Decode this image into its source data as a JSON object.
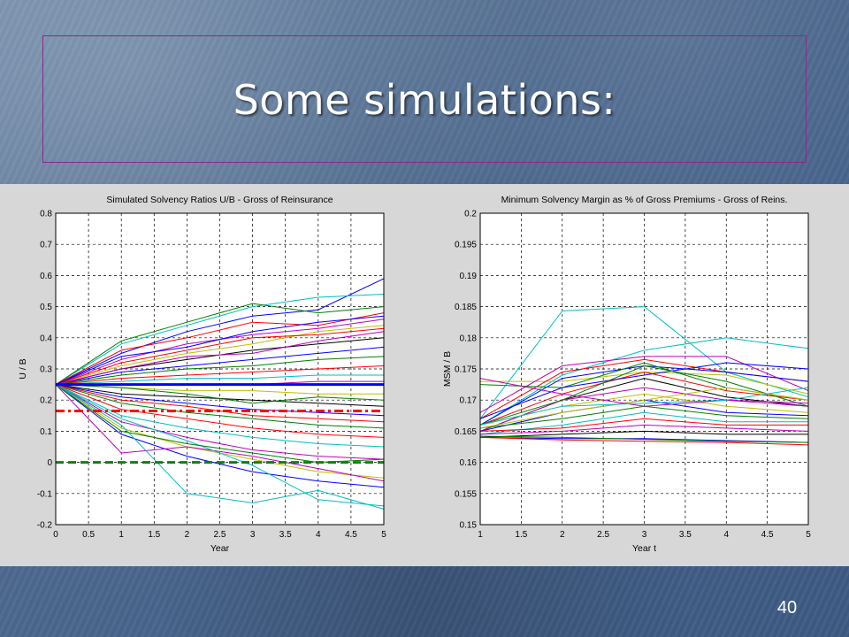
{
  "slide": {
    "title": "Some simulations:",
    "number": "40"
  },
  "colors": {
    "title_border": "#8a2a8a",
    "figure_background": "#d7d7d7",
    "threshold_red": "#ff0000",
    "threshold_green": "#008800",
    "reference_blue": "#0000ff"
  },
  "chart_data": [
    {
      "type": "line",
      "title": "Simulated Solvency Ratios U/B  -  Gross of Reinsurance",
      "xlabel": "Year",
      "ylabel": "U / B",
      "xlim": [
        0,
        5
      ],
      "ylim": [
        -0.2,
        0.8
      ],
      "xticks": [
        "0",
        "0.5",
        "1",
        "1.5",
        "2",
        "2.5",
        "3",
        "3.5",
        "4",
        "4.5",
        "5"
      ],
      "yticks": [
        "-0.2",
        "-0.1",
        "0",
        "0.1",
        "0.2",
        "0.3",
        "0.4",
        "0.5",
        "0.6",
        "0.7",
        "0.8"
      ],
      "grid": true,
      "x": [
        0,
        1,
        2,
        3,
        4,
        5
      ],
      "reference_lines": [
        {
          "y": 0.25,
          "color": "#0000ff",
          "style": "solid"
        },
        {
          "y": 0.165,
          "color": "#ff0000",
          "style": "dash-dot"
        },
        {
          "y": 0.0,
          "color": "#008800",
          "style": "dashed"
        }
      ],
      "series": [
        {
          "color": "#0000ff",
          "values": [
            0.25,
            0.35,
            0.42,
            0.47,
            0.49,
            0.59
          ]
        },
        {
          "color": "#00bfbf",
          "values": [
            0.25,
            0.38,
            0.44,
            0.5,
            0.53,
            0.54
          ]
        },
        {
          "color": "#008000",
          "values": [
            0.25,
            0.39,
            0.45,
            0.51,
            0.48,
            0.5
          ]
        },
        {
          "color": "#ff0000",
          "values": [
            0.25,
            0.36,
            0.4,
            0.45,
            0.44,
            0.48
          ]
        },
        {
          "color": "#bf00bf",
          "values": [
            0.25,
            0.33,
            0.38,
            0.41,
            0.43,
            0.46
          ]
        },
        {
          "color": "#bfbf00",
          "values": [
            0.25,
            0.31,
            0.35,
            0.38,
            0.42,
            0.44
          ]
        },
        {
          "color": "#000000",
          "values": [
            0.25,
            0.3,
            0.33,
            0.36,
            0.38,
            0.4
          ]
        },
        {
          "color": "#0000ff",
          "values": [
            0.25,
            0.29,
            0.31,
            0.33,
            0.35,
            0.37
          ]
        },
        {
          "color": "#008000",
          "values": [
            0.25,
            0.28,
            0.3,
            0.31,
            0.33,
            0.34
          ]
        },
        {
          "color": "#ff0000",
          "values": [
            0.25,
            0.27,
            0.28,
            0.29,
            0.3,
            0.31
          ]
        },
        {
          "color": "#00bfbf",
          "values": [
            0.25,
            0.26,
            0.27,
            0.27,
            0.28,
            0.28
          ]
        },
        {
          "color": "#bf00bf",
          "values": [
            0.25,
            0.25,
            0.25,
            0.25,
            0.26,
            0.26
          ]
        },
        {
          "color": "#bfbf00",
          "values": [
            0.25,
            0.24,
            0.23,
            0.23,
            0.22,
            0.22
          ]
        },
        {
          "color": "#000000",
          "values": [
            0.25,
            0.22,
            0.21,
            0.2,
            0.19,
            0.18
          ]
        },
        {
          "color": "#0000ff",
          "values": [
            0.25,
            0.21,
            0.19,
            0.17,
            0.16,
            0.15
          ]
        },
        {
          "color": "#008000",
          "values": [
            0.25,
            0.19,
            0.16,
            0.14,
            0.12,
            0.11
          ]
        },
        {
          "color": "#ff0000",
          "values": [
            0.25,
            0.17,
            0.14,
            0.11,
            0.09,
            0.08
          ]
        },
        {
          "color": "#00bfbf",
          "values": [
            0.25,
            0.15,
            0.11,
            0.08,
            0.06,
            0.05
          ]
        },
        {
          "color": "#bf00bf",
          "values": [
            0.25,
            0.13,
            0.08,
            0.04,
            0.02,
            0.01
          ]
        },
        {
          "color": "#bfbf00",
          "values": [
            0.25,
            0.11,
            0.05,
            0.01,
            -0.03,
            -0.05
          ]
        },
        {
          "color": "#0000ff",
          "values": [
            0.25,
            0.09,
            0.02,
            -0.03,
            -0.06,
            -0.08
          ]
        },
        {
          "color": "#bf00bf",
          "values": [
            0.25,
            0.03,
            0.05,
            0.02,
            -0.02,
            -0.06
          ]
        },
        {
          "color": "#00bfbf",
          "values": [
            0.25,
            0.12,
            -0.1,
            -0.13,
            -0.09,
            -0.15
          ]
        },
        {
          "color": "#00bfbf",
          "values": [
            0.25,
            0.14,
            0.07,
            -0.01,
            -0.12,
            -0.14
          ]
        },
        {
          "color": "#008000",
          "values": [
            0.25,
            0.1,
            0.06,
            0.03,
            0.0,
            0.01
          ]
        },
        {
          "color": "#ff0000",
          "values": [
            0.25,
            0.32,
            0.36,
            0.4,
            0.41,
            0.43
          ]
        },
        {
          "color": "#0000ff",
          "values": [
            0.25,
            0.34,
            0.37,
            0.42,
            0.45,
            0.47
          ]
        },
        {
          "color": "#008000",
          "values": [
            0.25,
            0.24,
            0.22,
            0.19,
            0.21,
            0.2
          ]
        },
        {
          "color": "#ff0000",
          "values": [
            0.25,
            0.2,
            0.18,
            0.15,
            0.14,
            0.13
          ]
        },
        {
          "color": "#bf00bf",
          "values": [
            0.25,
            0.3,
            0.34,
            0.35,
            0.39,
            0.42
          ]
        }
      ]
    },
    {
      "type": "line",
      "title": "Minimum Solvency Margin as % of Gross Premiums  -  Gross of Reins.",
      "xlabel": "Year t",
      "ylabel": "MSM / B",
      "xlim": [
        1,
        5
      ],
      "ylim": [
        0.15,
        0.2
      ],
      "xticks": [
        "1",
        "1.5",
        "2",
        "2.5",
        "3",
        "3.5",
        "4",
        "4.5",
        "5"
      ],
      "yticks": [
        "0.15",
        "0.155",
        "0.16",
        "0.165",
        "0.17",
        "0.175",
        "0.18",
        "0.185",
        "0.19",
        "0.195",
        "0.2"
      ],
      "grid": true,
      "x": [
        1,
        2,
        3,
        4,
        5
      ],
      "series": [
        {
          "color": "#00bfbf",
          "values": [
            0.167,
            0.1843,
            0.185,
            0.1745,
            0.1705
          ]
        },
        {
          "color": "#00bfbf",
          "values": [
            0.166,
            0.174,
            0.178,
            0.18,
            0.1783
          ]
        },
        {
          "color": "#bfbf00",
          "values": [
            0.173,
            0.173,
            0.1745,
            0.174,
            0.171
          ]
        },
        {
          "color": "#bf00bf",
          "values": [
            0.168,
            0.1755,
            0.177,
            0.177,
            0.1715
          ]
        },
        {
          "color": "#ff0000",
          "values": [
            0.167,
            0.1745,
            0.1765,
            0.1745,
            0.173
          ]
        },
        {
          "color": "#0000ff",
          "values": [
            0.166,
            0.1735,
            0.1755,
            0.1745,
            0.173
          ]
        },
        {
          "color": "#008000",
          "values": [
            0.1725,
            0.172,
            0.176,
            0.172,
            0.17
          ]
        },
        {
          "color": "#000000",
          "values": [
            0.165,
            0.17,
            0.1735,
            0.1705,
            0.169
          ]
        },
        {
          "color": "#ff0000",
          "values": [
            0.166,
            0.171,
            0.1745,
            0.1715,
            0.17
          ]
        },
        {
          "color": "#bf00bf",
          "values": [
            0.165,
            0.17,
            0.172,
            0.17,
            0.169
          ]
        },
        {
          "color": "#bfbf00",
          "values": [
            0.166,
            0.169,
            0.171,
            0.169,
            0.168
          ]
        },
        {
          "color": "#0000ff",
          "values": [
            0.165,
            0.168,
            0.17,
            0.168,
            0.1675
          ]
        },
        {
          "color": "#008000",
          "values": [
            0.1655,
            0.167,
            0.169,
            0.1675,
            0.167
          ]
        },
        {
          "color": "#00bfbf",
          "values": [
            0.1645,
            0.166,
            0.168,
            0.1665,
            0.1665
          ]
        },
        {
          "color": "#ff0000",
          "values": [
            0.165,
            0.1655,
            0.167,
            0.166,
            0.166
          ]
        },
        {
          "color": "#bf00bf",
          "values": [
            0.1645,
            0.165,
            0.166,
            0.1655,
            0.165
          ]
        },
        {
          "color": "#000000",
          "values": [
            0.164,
            0.1645,
            0.165,
            0.1645,
            0.1645
          ]
        },
        {
          "color": "#0000ff",
          "values": [
            0.164,
            0.1638,
            0.1638,
            0.1635,
            0.1632
          ]
        },
        {
          "color": "#008000",
          "values": [
            0.1642,
            0.164,
            0.1637,
            0.1634,
            0.1632
          ]
        },
        {
          "color": "#ff0000",
          "values": [
            0.164,
            0.1636,
            0.1634,
            0.1632,
            0.1628
          ]
        },
        {
          "color": "#0000ff",
          "values": [
            0.167,
            0.172,
            0.174,
            0.176,
            0.175
          ]
        },
        {
          "color": "#008000",
          "values": [
            0.166,
            0.17,
            0.1755,
            0.173,
            0.169
          ]
        },
        {
          "color": "#bfbf00",
          "values": [
            0.1655,
            0.168,
            0.17,
            0.172,
            0.17
          ]
        },
        {
          "color": "#bf00bf",
          "values": [
            0.1735,
            0.171,
            0.169,
            0.17,
            0.1695
          ]
        },
        {
          "color": "#00bfbf",
          "values": [
            0.166,
            0.169,
            0.1695,
            0.17,
            0.172
          ]
        }
      ]
    }
  ]
}
